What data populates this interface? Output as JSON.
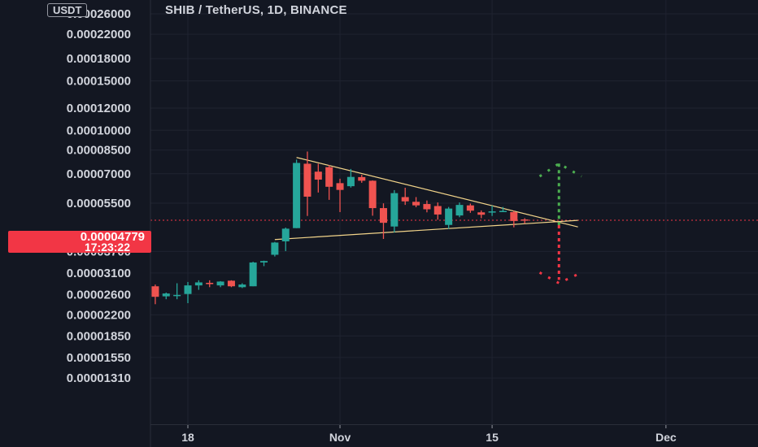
{
  "header": {
    "title": "SHIB / TetherUS, 1D, BINANCE",
    "currency": "USDT"
  },
  "price_tag": {
    "price": "0.00004779",
    "countdown": "17:23:22",
    "color": "#f23645"
  },
  "colors": {
    "background": "#131722",
    "up": "#26a69a",
    "down": "#ef5350",
    "trendline": "#f2d48a",
    "projection_up": "#4caf50",
    "projection_down": "#f23645"
  },
  "chart_data": {
    "type": "candlestick",
    "title": "SHIB / TetherUS, 1D, BINANCE",
    "y_scale": "log",
    "y_tick_labels": [
      "0.00026000",
      "0.00022000",
      "0.00018000",
      "0.00015000",
      "0.00012000",
      "0.00010000",
      "0.00008500",
      "0.00007000",
      "0.00005500",
      "0.00003700",
      "0.00003100",
      "0.00002600",
      "0.00002200",
      "0.00001850",
      "0.00001550",
      "0.00001310"
    ],
    "x_tick_labels": [
      "18",
      "Nov",
      "15",
      "Dec"
    ],
    "x_ticks": [
      "2021-10-18",
      "2021-11-01",
      "2021-11-15",
      "2021-12-01"
    ],
    "grid": true,
    "candles": [
      {
        "date": "2021-10-15",
        "open": 2.78e-05,
        "high": 2.82e-05,
        "low": 2.4e-05,
        "close": 2.55e-05
      },
      {
        "date": "2021-10-16",
        "open": 2.56e-05,
        "high": 2.64e-05,
        "low": 2.5e-05,
        "close": 2.62e-05
      },
      {
        "date": "2021-10-17",
        "open": 2.58e-05,
        "high": 2.85e-05,
        "low": 2.5e-05,
        "close": 2.59e-05
      },
      {
        "date": "2021-10-18",
        "open": 2.61e-05,
        "high": 2.88e-05,
        "low": 2.42e-05,
        "close": 2.8e-05
      },
      {
        "date": "2021-10-19",
        "open": 2.8e-05,
        "high": 2.92e-05,
        "low": 2.7e-05,
        "close": 2.87e-05
      },
      {
        "date": "2021-10-20",
        "open": 2.86e-05,
        "high": 2.92e-05,
        "low": 2.76e-05,
        "close": 2.83e-05
      },
      {
        "date": "2021-10-21",
        "open": 2.8e-05,
        "high": 2.9e-05,
        "low": 2.76e-05,
        "close": 2.89e-05
      },
      {
        "date": "2021-10-22",
        "open": 2.91e-05,
        "high": 2.92e-05,
        "low": 2.76e-05,
        "close": 2.78e-05
      },
      {
        "date": "2021-10-23",
        "open": 2.76e-05,
        "high": 2.85e-05,
        "low": 2.74e-05,
        "close": 2.82e-05
      },
      {
        "date": "2021-10-24",
        "open": 2.78e-05,
        "high": 3.4e-05,
        "low": 2.78e-05,
        "close": 3.38e-05
      },
      {
        "date": "2021-10-25",
        "open": 3.38e-05,
        "high": 3.43e-05,
        "low": 3.28e-05,
        "close": 3.42e-05
      },
      {
        "date": "2021-10-26",
        "open": 3.6e-05,
        "high": 4e-05,
        "low": 3.55e-05,
        "close": 3.98e-05
      },
      {
        "date": "2021-10-27",
        "open": 4.02e-05,
        "high": 4.5e-05,
        "low": 3.71e-05,
        "close": 4.46e-05
      },
      {
        "date": "2021-10-28",
        "open": 4.48e-05,
        "high": 7.86e-05,
        "low": 4.48e-05,
        "close": 7.65e-05
      },
      {
        "date": "2021-10-29",
        "open": 7.6e-05,
        "high": 8.4e-05,
        "low": 4.95e-05,
        "close": 5.8e-05
      },
      {
        "date": "2021-10-30",
        "open": 7.12e-05,
        "high": 7.6e-05,
        "low": 6e-05,
        "close": 6.67e-05
      },
      {
        "date": "2021-10-31",
        "open": 7.39e-05,
        "high": 7.52e-05,
        "low": 5.65e-05,
        "close": 6.29e-05
      },
      {
        "date": "2021-11-01",
        "open": 6.48e-05,
        "high": 6.72e-05,
        "low": 5.11e-05,
        "close": 6.13e-05
      },
      {
        "date": "2021-11-02",
        "open": 6.32e-05,
        "high": 7.28e-05,
        "low": 6.25e-05,
        "close": 6.82e-05
      },
      {
        "date": "2021-11-03",
        "open": 6.81e-05,
        "high": 6.94e-05,
        "low": 6.5e-05,
        "close": 6.61e-05
      },
      {
        "date": "2021-11-04",
        "open": 6.61e-05,
        "high": 6.63e-05,
        "low": 4.96e-05,
        "close": 5.28e-05
      },
      {
        "date": "2021-11-05",
        "open": 5.28e-05,
        "high": 5.49e-05,
        "low": 4.1e-05,
        "close": 4.68e-05
      },
      {
        "date": "2021-11-06",
        "open": 4.54e-05,
        "high": 6.12e-05,
        "low": 4.32e-05,
        "close": 5.97e-05
      },
      {
        "date": "2021-11-07",
        "open": 5.78e-05,
        "high": 6.24e-05,
        "low": 5.42e-05,
        "close": 5.58e-05
      },
      {
        "date": "2021-11-08",
        "open": 5.56e-05,
        "high": 5.78e-05,
        "low": 5.32e-05,
        "close": 5.4e-05
      },
      {
        "date": "2021-11-09",
        "open": 5.46e-05,
        "high": 5.62e-05,
        "low": 5.1e-05,
        "close": 5.23e-05
      },
      {
        "date": "2021-11-10",
        "open": 5.37e-05,
        "high": 5.53e-05,
        "low": 4.8e-05,
        "close": 5.01e-05
      },
      {
        "date": "2021-11-11",
        "open": 4.6e-05,
        "high": 5.33e-05,
        "low": 4.45e-05,
        "close": 5.26e-05
      },
      {
        "date": "2021-11-12",
        "open": 4.97e-05,
        "high": 5.53e-05,
        "low": 4.9e-05,
        "close": 5.42e-05
      },
      {
        "date": "2021-11-13",
        "open": 5.4e-05,
        "high": 5.48e-05,
        "low": 5.08e-05,
        "close": 5.17e-05
      },
      {
        "date": "2021-11-14",
        "open": 5.1e-05,
        "high": 5.18e-05,
        "low": 4.86e-05,
        "close": 5e-05
      },
      {
        "date": "2021-11-15",
        "open": 5.09e-05,
        "high": 5.39e-05,
        "low": 4.95e-05,
        "close": 5.14e-05
      },
      {
        "date": "2021-11-16",
        "open": 5.13e-05,
        "high": 5.33e-05,
        "low": 5.15e-05,
        "close": 5.16e-05
      },
      {
        "date": "2021-11-17",
        "open": 5.11e-05,
        "high": 5.16e-05,
        "low": 4.51e-05,
        "close": 4.75e-05
      },
      {
        "date": "2021-11-18",
        "open": 4.81e-05,
        "high": 4.86e-05,
        "low": 4.65e-05,
        "close": 4.78e-05
      }
    ],
    "last_price": 4.779e-05,
    "annotations": {
      "triangle": {
        "upper": [
          {
            "date": "2021-10-28",
            "price": 8e-05
          },
          {
            "date": "2021-11-22",
            "price": 4.68e-05
          }
        ],
        "lower": [
          {
            "date": "2021-10-26",
            "price": 4.08e-05
          },
          {
            "date": "2021-11-22",
            "price": 4.68e-05
          }
        ]
      },
      "projection": {
        "date": "2021-11-21",
        "up_target": 7.61e-05,
        "down_target": 2.93e-05,
        "up_bracket": [
          {
            "date": "2021-11-19",
            "price": 7.42e-05
          },
          {
            "date": "2021-11-23",
            "price": 7.42e-05
          }
        ],
        "down_bracket": [
          {
            "date": "2021-11-19",
            "price": 3.03e-05
          },
          {
            "date": "2021-11-23",
            "price": 3.03e-05
          }
        ]
      }
    }
  }
}
